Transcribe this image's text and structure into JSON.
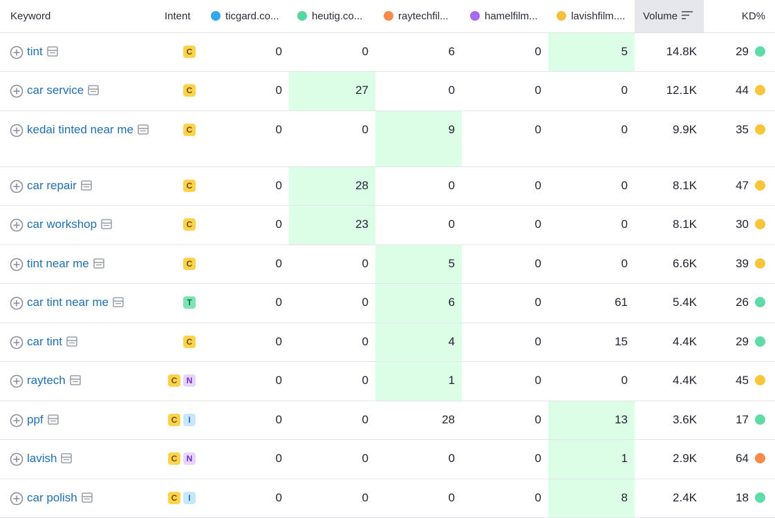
{
  "columns": {
    "keyword": "Keyword",
    "intent": "Intent",
    "domains": [
      {
        "label": "ticgard.co...",
        "color": "#2fa8f5"
      },
      {
        "label": "heutig.co...",
        "color": "#56d6a1"
      },
      {
        "label": "raytechfil...",
        "color": "#f7894a"
      },
      {
        "label": "hamelfilm...",
        "color": "#a86bf0"
      },
      {
        "label": "lavishfilm....",
        "color": "#f6bf3f"
      }
    ],
    "volume": "Volume",
    "kd": "KD%"
  },
  "kd_colors": {
    "green": "#5fdba7",
    "yellow": "#fbc53a",
    "orange": "#fb8a4a"
  },
  "rows": [
    {
      "keyword": "tint",
      "intents": [
        "C"
      ],
      "values": [
        "0",
        "0",
        "6",
        "0",
        "5"
      ],
      "highlight": 4,
      "volume": "14.8K",
      "kd": "29",
      "kd_level": "green"
    },
    {
      "keyword": "car service",
      "intents": [
        "C"
      ],
      "values": [
        "0",
        "27",
        "0",
        "0",
        "0"
      ],
      "highlight": 1,
      "volume": "12.1K",
      "kd": "44",
      "kd_level": "yellow"
    },
    {
      "keyword": "kedai tinted near me",
      "intents": [
        "C"
      ],
      "values": [
        "0",
        "0",
        "9",
        "0",
        "0"
      ],
      "highlight": 2,
      "volume": "9.9K",
      "kd": "35",
      "kd_level": "yellow"
    },
    {
      "keyword": "car repair",
      "intents": [
        "C"
      ],
      "values": [
        "0",
        "28",
        "0",
        "0",
        "0"
      ],
      "highlight": 1,
      "volume": "8.1K",
      "kd": "47",
      "kd_level": "yellow"
    },
    {
      "keyword": "car workshop",
      "intents": [
        "C"
      ],
      "values": [
        "0",
        "23",
        "0",
        "0",
        "0"
      ],
      "highlight": 1,
      "volume": "8.1K",
      "kd": "30",
      "kd_level": "yellow"
    },
    {
      "keyword": "tint near me",
      "intents": [
        "C"
      ],
      "values": [
        "0",
        "0",
        "5",
        "0",
        "0"
      ],
      "highlight": 2,
      "volume": "6.6K",
      "kd": "39",
      "kd_level": "yellow"
    },
    {
      "keyword": "car tint near me",
      "intents": [
        "T"
      ],
      "values": [
        "0",
        "0",
        "6",
        "0",
        "61"
      ],
      "highlight": 2,
      "volume": "5.4K",
      "kd": "26",
      "kd_level": "green"
    },
    {
      "keyword": "car tint",
      "intents": [
        "C"
      ],
      "values": [
        "0",
        "0",
        "4",
        "0",
        "15"
      ],
      "highlight": 2,
      "volume": "4.4K",
      "kd": "29",
      "kd_level": "green"
    },
    {
      "keyword": "raytech",
      "intents": [
        "C",
        "N"
      ],
      "values": [
        "0",
        "0",
        "1",
        "0",
        "0"
      ],
      "highlight": 2,
      "volume": "4.4K",
      "kd": "45",
      "kd_level": "yellow"
    },
    {
      "keyword": "ppf",
      "intents": [
        "C",
        "I"
      ],
      "values": [
        "0",
        "0",
        "28",
        "0",
        "13"
      ],
      "highlight": 4,
      "volume": "3.6K",
      "kd": "17",
      "kd_level": "green"
    },
    {
      "keyword": "lavish",
      "intents": [
        "C",
        "N"
      ],
      "values": [
        "0",
        "0",
        "0",
        "0",
        "1"
      ],
      "highlight": 4,
      "volume": "2.9K",
      "kd": "64",
      "kd_level": "orange"
    },
    {
      "keyword": "car polish",
      "intents": [
        "C",
        "I"
      ],
      "values": [
        "0",
        "0",
        "0",
        "0",
        "8"
      ],
      "highlight": 4,
      "volume": "2.4K",
      "kd": "18",
      "kd_level": "green"
    }
  ]
}
